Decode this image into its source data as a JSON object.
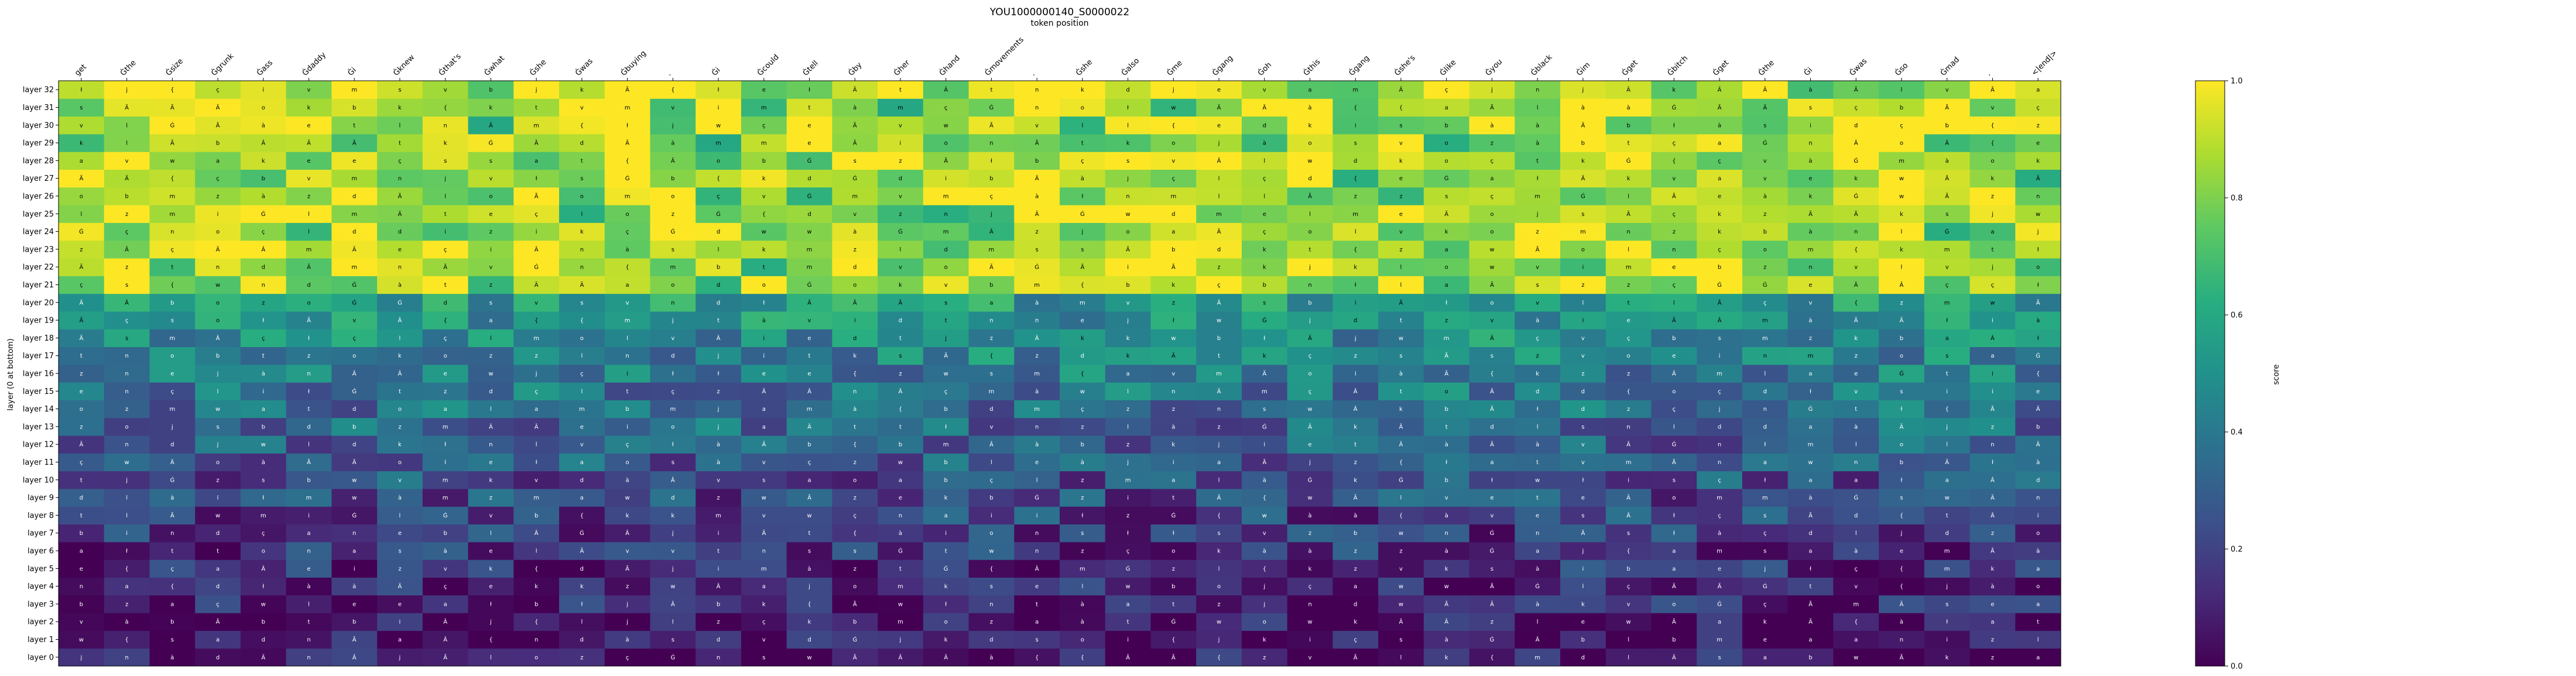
{
  "chart_data": {
    "type": "heatmap",
    "title": "YOU1000000140_S0000022",
    "xlabel": "token position",
    "ylabel": "layer (0 at bottom)",
    "colorbar_label": "score",
    "colormap": "viridis",
    "vmin": 0.0,
    "vmax": 1.0,
    "colorbar_ticks": [
      "0.0",
      "0.2",
      "0.4",
      "0.6",
      "0.8",
      "1.0"
    ],
    "x_tokens": [
      "get",
      "Ġthe",
      "Ġsize",
      "Ġgrunk",
      "Ġass",
      "Ġdaddy",
      "Ġi",
      "Ġknew",
      "Ġthat's",
      "Ġwhat",
      "Ġshe",
      "Ġwas",
      "Ġbuying",
      ".",
      "Ġi",
      "Ġcould",
      "Ġtell",
      "Ġby",
      "Ġher",
      "Ġhand",
      "Ġmovements",
      ".",
      "Ġshe",
      "Ġalso",
      "Ġme",
      "Ġgang",
      "Ġoh",
      "Ġthis",
      "Ġgang",
      "Ġshe's",
      "Ġlike",
      "Ġyou",
      "Ġblack",
      "Ġim",
      "Ġget",
      "Ġbitch",
      "Ġget",
      "Ġthe",
      "Ġi",
      "Ġwas",
      "Ġso",
      "Ġmad",
      ".",
      "<|end|>"
    ],
    "layers": [
      "layer 0",
      "layer 1",
      "layer 2",
      "layer 3",
      "layer 4",
      "layer 5",
      "layer 6",
      "layer 7",
      "layer 8",
      "layer 9",
      "layer 10",
      "layer 11",
      "layer 12",
      "layer 13",
      "layer 14",
      "layer 15",
      "layer 16",
      "layer 17",
      "layer 18",
      "layer 19",
      "layer 20",
      "layer 21",
      "layer 22",
      "layer 23",
      "layer 24",
      "layer 25",
      "layer 26",
      "layer 27",
      "layer 28",
      "layer 29",
      "layer 30",
      "layer 31",
      "layer 32"
    ],
    "cell_glyphs": [
      "Ä",
      "Ã",
      "ł",
      "Ġ",
      "{",
      "i",
      "e",
      "a",
      "o",
      "k",
      "t",
      "s",
      "w",
      "d",
      "b",
      "m",
      "v",
      "j",
      "Â",
      "l",
      "n",
      "ç",
      "à",
      "z"
    ],
    "note_seed": 140
  }
}
